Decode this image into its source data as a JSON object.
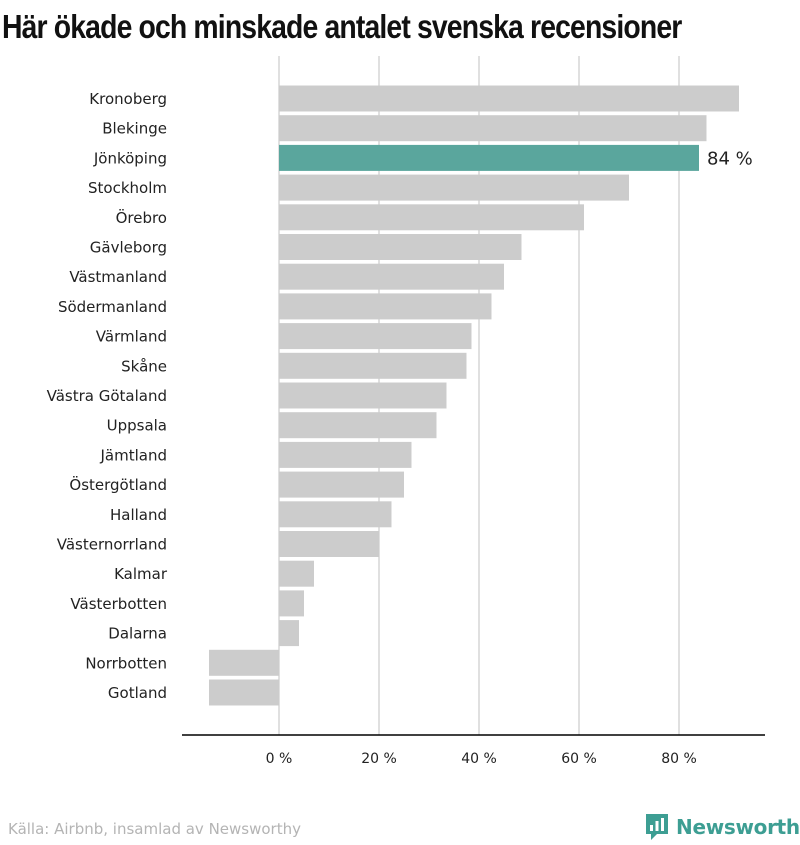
{
  "title": "Här ökade och minskade antalet svenska recensioner",
  "source": "Källa: Airbnb, insamlad av Newsworthy",
  "brand": {
    "name": "Newsworthy",
    "icon": "newsworthy-logo-icon",
    "color": "#3d9e93"
  },
  "colors": {
    "default_bar": "#cccccc",
    "highlight_bar": "#5aa69d",
    "grid": "#d6d6d6",
    "axis": "#000000"
  },
  "chart_data": {
    "type": "bar",
    "orientation": "horizontal",
    "title": "Här ökade och minskade antalet svenska recensioner",
    "categories": [
      "Kronoberg",
      "Blekinge",
      "Jönköping",
      "Stockholm",
      "Örebro",
      "Gävleborg",
      "Västmanland",
      "Södermanland",
      "Värmland",
      "Skåne",
      "Västra Götaland",
      "Uppsala",
      "Jämtland",
      "Östergötland",
      "Halland",
      "Västernorrland",
      "Kalmar",
      "Västerbotten",
      "Dalarna",
      "Norrbotten",
      "Gotland"
    ],
    "values": [
      92,
      85.5,
      84,
      70,
      61,
      48.5,
      45,
      42.5,
      38.5,
      37.5,
      33.5,
      31.5,
      26.5,
      25,
      22.5,
      20,
      7,
      5,
      4,
      -14,
      -14
    ],
    "highlight": "Jönköping",
    "data_labels": [
      {
        "category": "Jönköping",
        "text": "84 %"
      }
    ],
    "xlim": [
      -20,
      97
    ],
    "x_ticks": [
      0,
      20,
      40,
      60,
      80
    ],
    "x_tick_labels": [
      "0 %",
      "20 %",
      "40 %",
      "60 %",
      "80 %"
    ],
    "grid": true,
    "xlabel": "",
    "ylabel": ""
  }
}
